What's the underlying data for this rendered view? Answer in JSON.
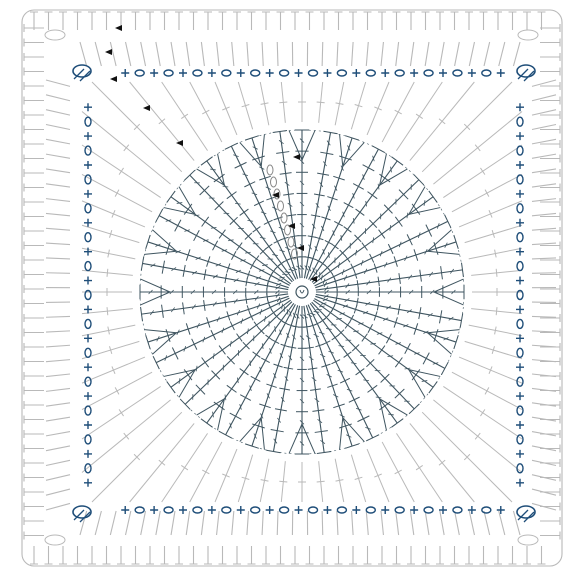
{
  "diagram": {
    "kind": "crochet-chart",
    "shape": "circle-in-square",
    "colors": {
      "background": "#ffffff",
      "center_circle": "#3f5560",
      "outer_rounds": "#b9b9b9",
      "highlight_round": "#1f4e79",
      "markers": "#111111",
      "start_chain": "#888888"
    },
    "center_ring": {
      "label": "ring",
      "symbol": "magic-ring"
    },
    "center_circle": {
      "spokes": 40,
      "stitch_rows": 7
    },
    "outer_rounds": {
      "count": 3,
      "stitch_per_side": 27
    },
    "highlight_round": {
      "pattern": "chain-space-sc",
      "symbols": [
        "+",
        "o"
      ],
      "corners": 4
    },
    "start_markers": {
      "count": 10
    }
  }
}
